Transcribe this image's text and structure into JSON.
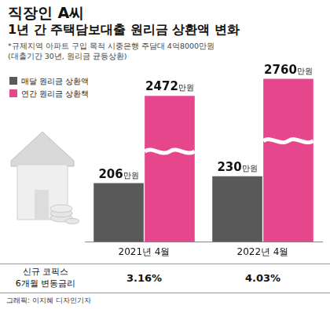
{
  "chart_data": {
    "type": "bar",
    "title": [
      "직장인 A씨",
      "1년 간 주택담보대출 원리금 상환액 변화"
    ],
    "notes": [
      "*규제지역 아파트 구입 목적 시중은행 주담대 4억8000만원",
      "(대출기간 30년, 원리금 균등상환)"
    ],
    "categories": [
      "2021년 4월",
      "2022년 4월"
    ],
    "series": [
      {
        "name": "매달 원리금 상환액",
        "color": "#595959",
        "values": [
          206,
          230
        ],
        "value_labels": [
          "206만원",
          "230만원"
        ]
      },
      {
        "name": "연간 원리금 상환책",
        "color": "#e5468c",
        "values": [
          2472,
          2760
        ],
        "value_labels": [
          "2472만원",
          "2760만원"
        ],
        "axis": "y2"
      }
    ],
    "ylim": [
      0,
      600
    ],
    "yticks": [
      0,
      600
    ],
    "y2lim": [
      0,
      2900
    ],
    "y2ticks": [
      0,
      2900
    ],
    "grid": false,
    "data_labels": true,
    "tick_labels": "x",
    "legend": "top-left",
    "rate_row": {
      "label": [
        "신규 코픽스",
        "6개월 변동금리"
      ],
      "values": [
        3.16,
        4.03
      ],
      "value_labels": [
        "3.16%",
        "4.03%"
      ]
    },
    "credit": "그래픽: 이지혜 디자인기자"
  }
}
